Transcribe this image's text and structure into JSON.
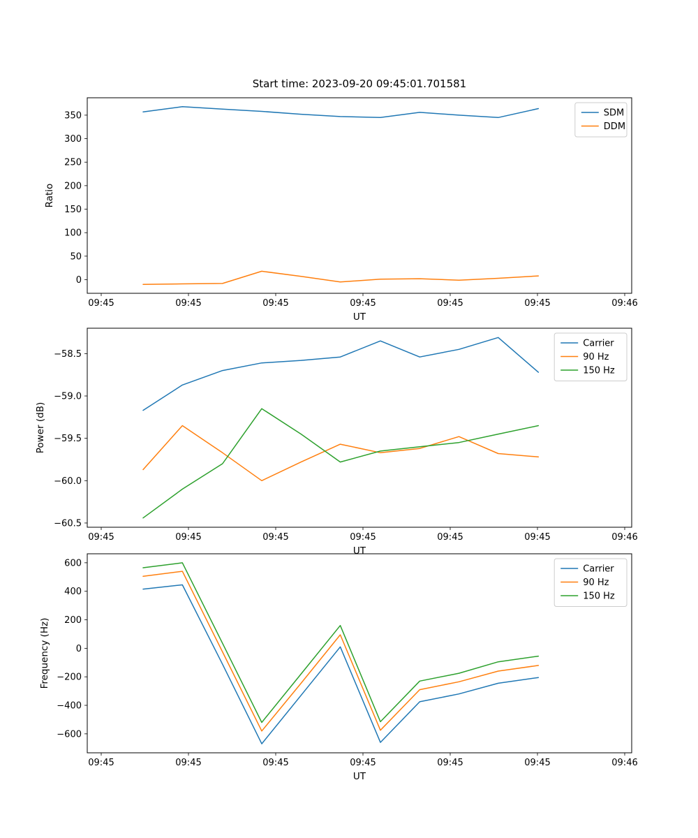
{
  "figure": {
    "title": "Start time: 2023-09-20 09:45:01.701581",
    "background": "#ffffff",
    "text_color": "#000000"
  },
  "chart_data": [
    {
      "type": "line",
      "title": "Start time: 2023-09-20 09:45:01.701581",
      "xlabel": "UT",
      "ylabel": "Ratio",
      "x_unit": "seconds after 09:45:00 UT",
      "x": [
        4.8,
        9.3,
        13.9,
        18.4,
        22.9,
        27.4,
        32.0,
        36.5,
        41.0,
        45.5,
        50.1
      ],
      "series": [
        {
          "name": "SDM",
          "color": "#1f77b4",
          "values": [
            357,
            368,
            363,
            358,
            352,
            347,
            345,
            356,
            350,
            345,
            364
          ]
        },
        {
          "name": "DDM",
          "color": "#ff7f0e",
          "values": [
            -10,
            -9,
            -8,
            18,
            7,
            -5,
            1,
            2,
            -1,
            3,
            8
          ]
        }
      ],
      "xlim": [
        -1.6,
        60.8
      ],
      "ylim": [
        -29,
        387
      ],
      "xticks": [
        0,
        10,
        20,
        30,
        40,
        50,
        60
      ],
      "xtick_labels": [
        "09:45",
        "09:45",
        "09:45",
        "09:45",
        "09:45",
        "09:45",
        "09:46"
      ],
      "yticks": [
        0,
        50,
        100,
        150,
        200,
        250,
        300,
        350
      ],
      "ytick_labels": [
        "0",
        "50",
        "100",
        "150",
        "200",
        "250",
        "300",
        "350"
      ],
      "legend": {
        "position": "upper right",
        "entries": [
          "SDM",
          "DDM"
        ]
      },
      "grid": false
    },
    {
      "type": "line",
      "title": "",
      "xlabel": "UT",
      "ylabel": "Power (dB)",
      "x_unit": "seconds after 09:45:00 UT",
      "x": [
        4.8,
        9.3,
        13.9,
        18.4,
        22.9,
        27.4,
        32.0,
        36.5,
        41.0,
        45.5,
        50.1
      ],
      "series": [
        {
          "name": "Carrier",
          "color": "#1f77b4",
          "values": [
            -59.17,
            -58.87,
            -58.7,
            -58.61,
            -58.58,
            -58.54,
            -58.35,
            -58.54,
            -58.45,
            -58.31,
            -58.72
          ]
        },
        {
          "name": "90 Hz",
          "color": "#ff7f0e",
          "values": [
            -59.87,
            -59.35,
            -59.67,
            -60.0,
            -59.78,
            -59.57,
            -59.67,
            -59.62,
            -59.48,
            -59.68,
            -59.72
          ]
        },
        {
          "name": "150 Hz",
          "color": "#2ca02c",
          "values": [
            -60.44,
            -60.1,
            -59.8,
            -59.15,
            -59.45,
            -59.78,
            -59.65,
            -59.6,
            -59.55,
            -59.45,
            -59.35
          ]
        }
      ],
      "xlim": [
        -1.6,
        60.8
      ],
      "ylim": [
        -60.55,
        -58.2
      ],
      "xticks": [
        0,
        10,
        20,
        30,
        40,
        50,
        60
      ],
      "xtick_labels": [
        "09:45",
        "09:45",
        "09:45",
        "09:45",
        "09:45",
        "09:45",
        "09:46"
      ],
      "yticks": [
        -60.5,
        -60.0,
        -59.5,
        -59.0,
        -58.5
      ],
      "ytick_labels": [
        "−60.5",
        "−60.0",
        "−59.5",
        "−59.0",
        "−58.5"
      ],
      "legend": {
        "position": "upper right",
        "entries": [
          "Carrier",
          "90 Hz",
          "150 Hz"
        ]
      },
      "grid": false
    },
    {
      "type": "line",
      "title": "",
      "xlabel": "UT",
      "ylabel": "Frequency (Hz)",
      "x_unit": "seconds after 09:45:00 UT",
      "x": [
        4.8,
        9.3,
        13.9,
        18.4,
        22.9,
        27.4,
        32.0,
        36.5,
        41.0,
        45.5,
        50.1
      ],
      "series": [
        {
          "name": "Carrier",
          "color": "#1f77b4",
          "values": [
            415,
            445,
            -112,
            -670,
            -330,
            10,
            -660,
            -375,
            -320,
            -245,
            -205
          ]
        },
        {
          "name": "90 Hz",
          "color": "#ff7f0e",
          "values": [
            505,
            540,
            -25,
            -580,
            -245,
            95,
            -575,
            -290,
            -235,
            -160,
            -120
          ]
        },
        {
          "name": "150 Hz",
          "color": "#2ca02c",
          "values": [
            565,
            600,
            35,
            -520,
            -180,
            160,
            -515,
            -230,
            -175,
            -95,
            -55
          ]
        }
      ],
      "xlim": [
        -1.6,
        60.8
      ],
      "ylim": [
        -733,
        663
      ],
      "xticks": [
        0,
        10,
        20,
        30,
        40,
        50,
        60
      ],
      "xtick_labels": [
        "09:45",
        "09:45",
        "09:45",
        "09:45",
        "09:45",
        "09:45",
        "09:46"
      ],
      "yticks": [
        -600,
        -400,
        -200,
        0,
        200,
        400,
        600
      ],
      "ytick_labels": [
        "−600",
        "−400",
        "−200",
        "0",
        "200",
        "400",
        "600"
      ],
      "legend": {
        "position": "upper right",
        "entries": [
          "Carrier",
          "90 Hz",
          "150 Hz"
        ]
      },
      "grid": false
    }
  ]
}
